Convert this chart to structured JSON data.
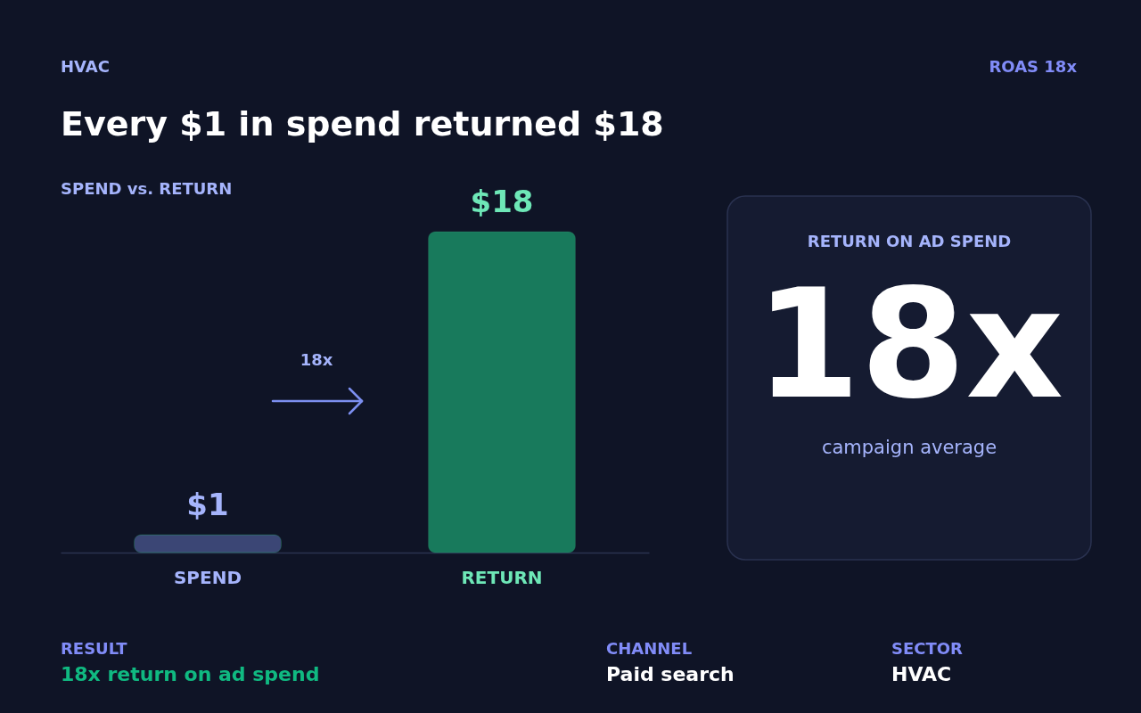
{
  "chart_data": {
    "type": "bar",
    "title": "Every $1 in spend returned $18",
    "subtitle": "SPEND vs. RETURN",
    "categories": [
      "SPEND",
      "RETURN"
    ],
    "values": [
      1,
      18
    ],
    "colors": [
      "#3b4675",
      "#187a5c"
    ],
    "value_labels": [
      "$1",
      "$18"
    ],
    "grid": false,
    "annotations": [
      "HVAC",
      "ROAS 18x",
      "18x",
      "RETURN ON AD SPEND",
      "18x",
      "campaign average",
      "RESULT",
      "18x return on ad spend",
      "CHANNEL",
      "Paid search",
      "SECTOR",
      "HVAC"
    ]
  }
}
